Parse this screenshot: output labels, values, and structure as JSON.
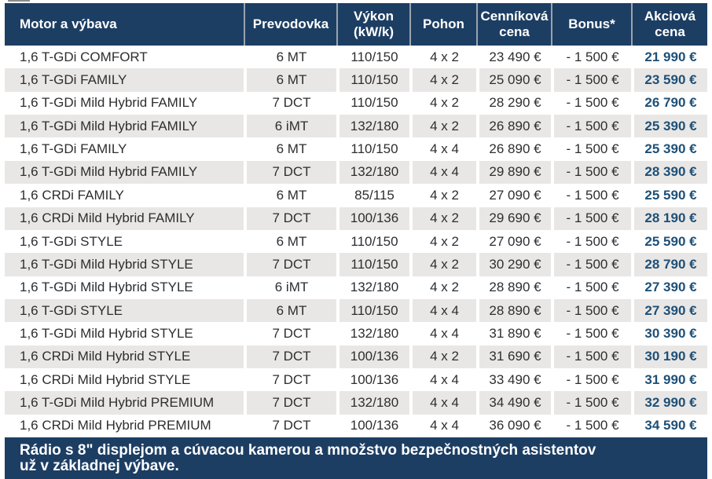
{
  "colors": {
    "navy": "#1d3e63",
    "row_stripe": "#e9e7e5",
    "accent_price_blue": "#1d5078",
    "body_text": "#2e2e2e",
    "header_separator": "#9aa3ae"
  },
  "table": {
    "columns": [
      {
        "key": "motor",
        "label": "Motor a výbava"
      },
      {
        "key": "prevodovka",
        "label": "Prevodovka"
      },
      {
        "key": "vykon",
        "label": "Výkon (kW/k)"
      },
      {
        "key": "pohon",
        "label": "Pohon"
      },
      {
        "key": "cennikova",
        "label": "Cenníková cena"
      },
      {
        "key": "bonus",
        "label": "Bonus*"
      },
      {
        "key": "akciova",
        "label": "Akciová cena"
      }
    ],
    "rows": [
      {
        "motor": "1,6 T-GDi COMFORT",
        "prevodovka": "6 MT",
        "vykon": "110/150",
        "pohon": "4 x 2",
        "cennikova": "23 490 €",
        "bonus": "- 1 500 €",
        "akciova": "21 990 €"
      },
      {
        "motor": "1,6 T-GDi FAMILY",
        "prevodovka": "6 MT",
        "vykon": "110/150",
        "pohon": "4 x 2",
        "cennikova": "25 090 €",
        "bonus": "- 1 500 €",
        "akciova": "23 590 €"
      },
      {
        "motor": "1,6 T-GDi Mild Hybrid FAMILY",
        "prevodovka": "7 DCT",
        "vykon": "110/150",
        "pohon": "4 x 2",
        "cennikova": "28 290 €",
        "bonus": "- 1 500 €",
        "akciova": "26 790 €"
      },
      {
        "motor": "1,6 T-GDi Mild Hybrid FAMILY",
        "prevodovka": "6 iMT",
        "vykon": "132/180",
        "pohon": "4 x 2",
        "cennikova": "26 890 €",
        "bonus": "- 1 500 €",
        "akciova": "25 390 €"
      },
      {
        "motor": "1,6 T-GDi FAMILY",
        "prevodovka": "6 MT",
        "vykon": "110/150",
        "pohon": "4 x 4",
        "cennikova": "26 890 €",
        "bonus": "- 1 500 €",
        "akciova": "25 390 €"
      },
      {
        "motor": "1,6 T-GDi Mild Hybrid FAMILY",
        "prevodovka": "7 DCT",
        "vykon": "132/180",
        "pohon": "4 x 4",
        "cennikova": "29 890 €",
        "bonus": "- 1 500 €",
        "akciova": "28 390 €"
      },
      {
        "motor": "1,6 CRDi FAMILY",
        "prevodovka": "6 MT",
        "vykon": "85/115",
        "pohon": "4 x 2",
        "cennikova": "27 090 €",
        "bonus": "- 1 500 €",
        "akciova": "25 590 €"
      },
      {
        "motor": "1,6 CRDi Mild Hybrid FAMILY",
        "prevodovka": "7 DCT",
        "vykon": "100/136",
        "pohon": "4 x 2",
        "cennikova": "29 690 €",
        "bonus": "- 1 500 €",
        "akciova": "28 190 €"
      },
      {
        "motor": "1,6 T-GDi STYLE",
        "prevodovka": "6 MT",
        "vykon": "110/150",
        "pohon": "4 x 2",
        "cennikova": "27 090 €",
        "bonus": "- 1 500 €",
        "akciova": "25 590 €"
      },
      {
        "motor": "1,6 T-GDi Mild Hybrid STYLE",
        "prevodovka": "7 DCT",
        "vykon": "110/150",
        "pohon": "4 x 2",
        "cennikova": "30 290 €",
        "bonus": "- 1 500 €",
        "akciova": "28 790 €"
      },
      {
        "motor": "1,6 T-GDi Mild Hybrid STYLE",
        "prevodovka": "6 iMT",
        "vykon": "132/180",
        "pohon": "4 x 2",
        "cennikova": "28 890 €",
        "bonus": "- 1 500 €",
        "akciova": "27 390 €"
      },
      {
        "motor": "1,6 T-GDi STYLE",
        "prevodovka": "6 MT",
        "vykon": "110/150",
        "pohon": "4 x 4",
        "cennikova": "28 890 €",
        "bonus": "- 1 500 €",
        "akciova": "27 390 €"
      },
      {
        "motor": "1,6 T-GDi Mild Hybrid STYLE",
        "prevodovka": "7 DCT",
        "vykon": "132/180",
        "pohon": "4 x 4",
        "cennikova": "31 890 €",
        "bonus": "- 1 500 €",
        "akciova": "30 390 €"
      },
      {
        "motor": "1,6 CRDi Mild Hybrid STYLE",
        "prevodovka": "7 DCT",
        "vykon": "100/136",
        "pohon": "4 x 2",
        "cennikova": "31 690 €",
        "bonus": "- 1 500 €",
        "akciova": "30 190 €"
      },
      {
        "motor": "1,6 CRDi Mild Hybrid STYLE",
        "prevodovka": "7 DCT",
        "vykon": "100/136",
        "pohon": "4 x 4",
        "cennikova": "33 490 €",
        "bonus": "- 1 500 €",
        "akciova": "31 990 €"
      },
      {
        "motor": "1,6 T-GDi Mild Hybrid PREMIUM",
        "prevodovka": "7 DCT",
        "vykon": "132/180",
        "pohon": "4 x 4",
        "cennikova": "34 490 €",
        "bonus": "- 1 500 €",
        "akciova": "32 990 €"
      },
      {
        "motor": "1,6 CRDi Mild Hybrid PREMIUM",
        "prevodovka": "7 DCT",
        "vykon": "100/136",
        "pohon": "4 x 4",
        "cennikova": "36 090 €",
        "bonus": "- 1 500 €",
        "akciova": "34 590 €"
      }
    ]
  },
  "footer": {
    "note": "Rádio s 8\" displejom a cúvacou kamerou a množstvo bezpečnostných asistentov už v základnej výbave."
  }
}
